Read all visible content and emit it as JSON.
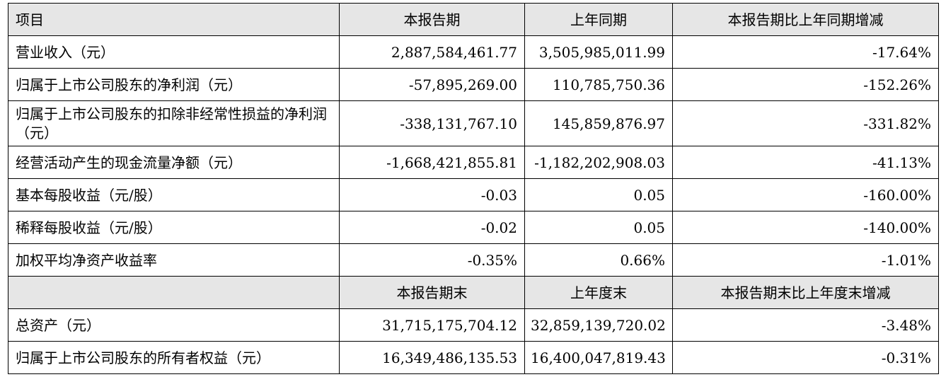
{
  "header": {
    "item": "项目",
    "current_period": "本报告期",
    "prior_period": "上年同期",
    "change": "本报告期比上年同期增减"
  },
  "rows": [
    {
      "label": "营业收入（元）",
      "current": "2,887,584,461.77",
      "prior": "3,505,985,011.99",
      "change": "-17.64%"
    },
    {
      "label": "归属于上市公司股东的净利润（元）",
      "current": "-57,895,269.00",
      "prior": "110,785,750.36",
      "change": "-152.26%"
    },
    {
      "label": "归属于上市公司股东的扣除非经常性损益的净利润（元）",
      "current": "-338,131,767.10",
      "prior": "145,859,876.97",
      "change": "-331.82%"
    },
    {
      "label": "经营活动产生的现金流量净额（元）",
      "current": "-1,668,421,855.81",
      "prior": "-1,182,202,908.03",
      "change": "-41.13%"
    },
    {
      "label": "基本每股收益（元/股）",
      "current": "-0.03",
      "prior": "0.05",
      "change": "-160.00%"
    },
    {
      "label": "稀释每股收益（元/股）",
      "current": "-0.02",
      "prior": "0.05",
      "change": "-140.00%"
    },
    {
      "label": "加权平均净资产收益率",
      "current": "-0.35%",
      "prior": "0.66%",
      "change": "-1.01%"
    }
  ],
  "header2": {
    "item": "",
    "current_period_end": "本报告期末",
    "prior_year_end": "上年度末",
    "change": "本报告期末比上年度末增减"
  },
  "rows2": [
    {
      "label": "总资产（元）",
      "current": "31,715,175,704.12",
      "prior": "32,859,139,720.02",
      "change": "-3.48%"
    },
    {
      "label": "归属于上市公司股东的所有者权益（元）",
      "current": "16,349,486,135.53",
      "prior": "16,400,047,819.43",
      "change": "-0.31%"
    }
  ]
}
